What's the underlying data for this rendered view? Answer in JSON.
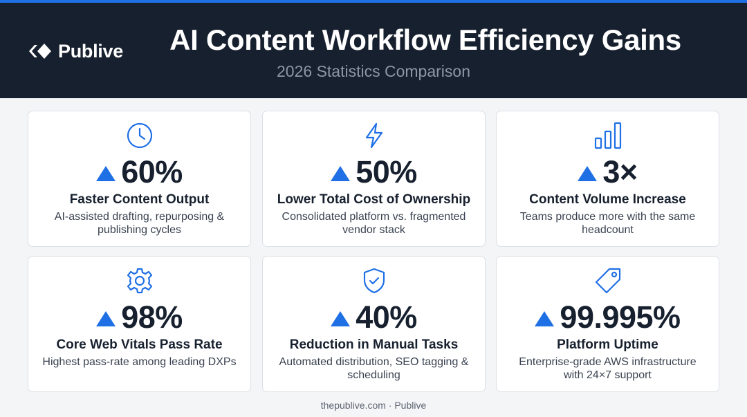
{
  "header": {
    "logo_text": "Publive",
    "title": "AI Content Workflow Efficiency Gains",
    "subtitle": "2026 Statistics Comparison"
  },
  "colors": {
    "accent": "#1f6fe5",
    "header_bg": "#17202e",
    "card_bg": "#ffffff",
    "text_dark": "#17202e"
  },
  "cards": [
    {
      "icon": "clock-icon",
      "value": "60%",
      "label": "Faster Content Output",
      "desc": "AI-assisted drafting, repurposing & publishing cycles"
    },
    {
      "icon": "lightning-icon",
      "value": "50%",
      "label": "Lower Total Cost of Ownership",
      "desc": "Consolidated platform vs. fragmented vendor stack"
    },
    {
      "icon": "bar-chart-icon",
      "value": "3×",
      "label": "Content Volume Increase",
      "desc": "Teams produce more with the same headcount"
    },
    {
      "icon": "gear-icon",
      "value": "98%",
      "label": "Core Web Vitals Pass Rate",
      "desc": "Highest pass-rate among leading DXPs"
    },
    {
      "icon": "shield-check-icon",
      "value": "40%",
      "label": "Reduction in Manual Tasks",
      "desc": "Automated distribution, SEO tagging & scheduling"
    },
    {
      "icon": "tag-icon",
      "value": "99.995%",
      "label": "Platform Uptime",
      "desc": "Enterprise-grade AWS infrastructure with 24×7 support"
    }
  ],
  "footer": {
    "text": "thepublive.com · Publive"
  }
}
